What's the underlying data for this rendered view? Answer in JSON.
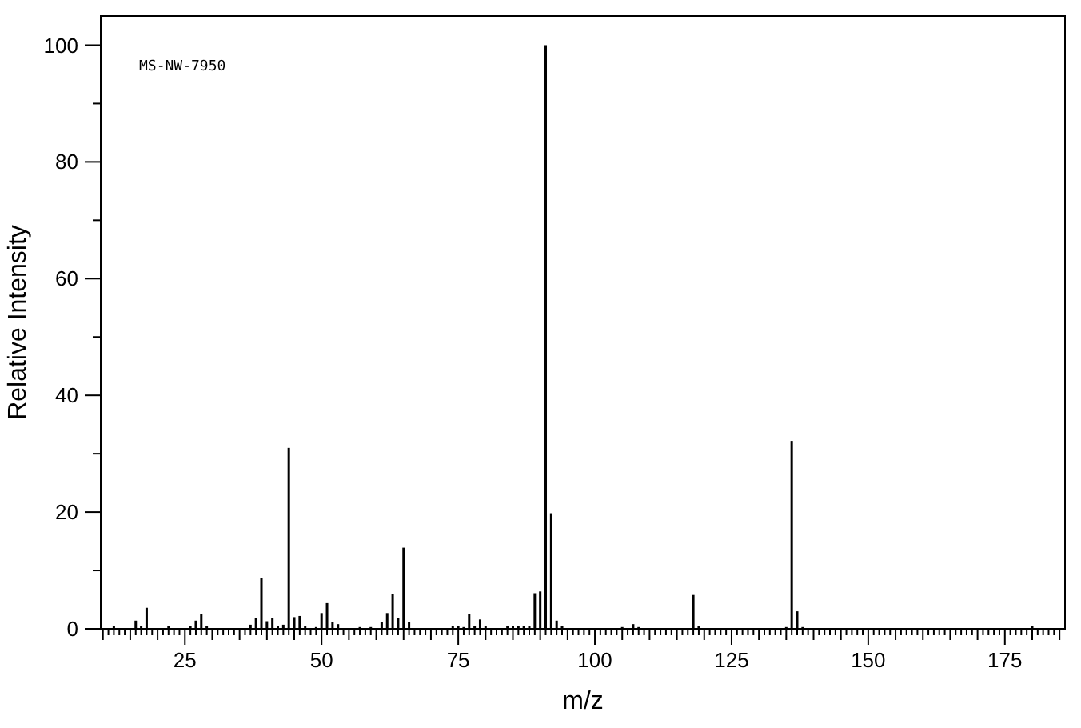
{
  "chart_data": {
    "type": "bar",
    "xlabel": "m/z",
    "ylabel": "Relative Intensity",
    "annotations": [
      "MS-NW-7950"
    ],
    "color": "#000000",
    "x": [
      12,
      16,
      17,
      18,
      22,
      26,
      27,
      28,
      29,
      37,
      38,
      39,
      40,
      41,
      42,
      43,
      44,
      45,
      46,
      47,
      49,
      50,
      51,
      52,
      53,
      57,
      59,
      61,
      62,
      63,
      64,
      65,
      66,
      74,
      75,
      76,
      77,
      78,
      79,
      80,
      84,
      85,
      86,
      87,
      88,
      89,
      90,
      91,
      92,
      93,
      94,
      105,
      107,
      108,
      118,
      119,
      135,
      136,
      137,
      138,
      180
    ],
    "values": [
      0.5,
      1.4,
      0.5,
      3.6,
      0.5,
      0.5,
      1.4,
      2.5,
      0.5,
      0.7,
      1.9,
      8.7,
      1.3,
      1.9,
      0.5,
      0.7,
      31,
      2.0,
      2.2,
      0.5,
      0.3,
      2.7,
      4.4,
      1.1,
      0.8,
      0.3,
      0.3,
      1.1,
      2.7,
      6.0,
      1.9,
      13.9,
      1.1,
      0.5,
      0.5,
      0.3,
      2.5,
      0.5,
      1.6,
      0.5,
      0.5,
      0.5,
      0.5,
      0.5,
      0.5,
      6.1,
      6.4,
      100,
      19.8,
      1.4,
      0.5,
      0.3,
      0.8,
      0.3,
      5.8,
      0.5,
      0.3,
      32.2,
      3.0,
      0.3,
      0.5
    ],
    "xlim": [
      9.6,
      186
    ],
    "ylim": [
      0,
      105
    ],
    "xticks": [
      {
        "value": 10,
        "label": null
      },
      {
        "value": 11,
        "label": null
      },
      {
        "value": 12,
        "label": null
      },
      {
        "value": 13,
        "label": null
      },
      {
        "value": 14,
        "label": null
      },
      {
        "value": 15,
        "label": null
      },
      {
        "value": 16,
        "label": null
      },
      {
        "value": 17,
        "label": null
      },
      {
        "value": 18,
        "label": null
      },
      {
        "value": 19,
        "label": null
      },
      {
        "value": 20,
        "label": null
      },
      {
        "value": 21,
        "label": null
      },
      {
        "value": 22,
        "label": null
      },
      {
        "value": 23,
        "label": null
      },
      {
        "value": 24,
        "label": null
      },
      25,
      {
        "value": 26,
        "label": null
      },
      {
        "value": 27,
        "label": null
      },
      {
        "value": 28,
        "label": null
      },
      {
        "value": 29,
        "label": null
      },
      {
        "value": 30,
        "label": null
      },
      {
        "value": 31,
        "label": null
      },
      {
        "value": 32,
        "label": null
      },
      {
        "value": 33,
        "label": null
      },
      {
        "value": 34,
        "label": null
      },
      {
        "value": 35,
        "label": null
      },
      {
        "value": 36,
        "label": null
      },
      {
        "value": 37,
        "label": null
      },
      {
        "value": 38,
        "label": null
      },
      {
        "value": 39,
        "label": null
      },
      {
        "value": 40,
        "label": null
      },
      {
        "value": 41,
        "label": null
      },
      {
        "value": 42,
        "label": null
      },
      {
        "value": 43,
        "label": null
      },
      {
        "value": 44,
        "label": null
      },
      {
        "value": 45,
        "label": null
      },
      {
        "value": 46,
        "label": null
      },
      {
        "value": 47,
        "label": null
      },
      {
        "value": 48,
        "label": null
      },
      {
        "value": 49,
        "label": null
      },
      50,
      {
        "value": 51,
        "label": null
      },
      {
        "value": 52,
        "label": null
      },
      {
        "value": 53,
        "label": null
      },
      {
        "value": 54,
        "label": null
      },
      {
        "value": 55,
        "label": null
      },
      {
        "value": 56,
        "label": null
      },
      {
        "value": 57,
        "label": null
      },
      {
        "value": 58,
        "label": null
      },
      {
        "value": 59,
        "label": null
      },
      {
        "value": 60,
        "label": null
      },
      {
        "value": 61,
        "label": null
      },
      {
        "value": 62,
        "label": null
      },
      {
        "value": 63,
        "label": null
      },
      {
        "value": 64,
        "label": null
      },
      {
        "value": 65,
        "label": null
      },
      {
        "value": 66,
        "label": null
      },
      {
        "value": 67,
        "label": null
      },
      {
        "value": 68,
        "label": null
      },
      {
        "value": 69,
        "label": null
      },
      {
        "value": 70,
        "label": null
      },
      {
        "value": 71,
        "label": null
      },
      {
        "value": 72,
        "label": null
      },
      {
        "value": 73,
        "label": null
      },
      {
        "value": 74,
        "label": null
      },
      75,
      {
        "value": 76,
        "label": null
      },
      {
        "value": 77,
        "label": null
      },
      {
        "value": 78,
        "label": null
      },
      {
        "value": 79,
        "label": null
      },
      {
        "value": 80,
        "label": null
      },
      {
        "value": 81,
        "label": null
      },
      {
        "value": 82,
        "label": null
      },
      {
        "value": 83,
        "label": null
      },
      {
        "value": 84,
        "label": null
      },
      {
        "value": 85,
        "label": null
      },
      {
        "value": 86,
        "label": null
      },
      {
        "value": 87,
        "label": null
      },
      {
        "value": 88,
        "label": null
      },
      {
        "value": 89,
        "label": null
      },
      {
        "value": 90,
        "label": null
      },
      {
        "value": 91,
        "label": null
      },
      {
        "value": 92,
        "label": null
      },
      {
        "value": 93,
        "label": null
      },
      {
        "value": 94,
        "label": null
      },
      {
        "value": 95,
        "label": null
      },
      {
        "value": 96,
        "label": null
      },
      {
        "value": 97,
        "label": null
      },
      {
        "value": 98,
        "label": null
      },
      {
        "value": 99,
        "label": null
      },
      100,
      {
        "value": 101,
        "label": null
      },
      {
        "value": 102,
        "label": null
      },
      {
        "value": 103,
        "label": null
      },
      {
        "value": 104,
        "label": null
      },
      {
        "value": 105,
        "label": null
      },
      {
        "value": 106,
        "label": null
      },
      {
        "value": 107,
        "label": null
      },
      {
        "value": 108,
        "label": null
      },
      {
        "value": 109,
        "label": null
      },
      {
        "value": 110,
        "label": null
      },
      {
        "value": 111,
        "label": null
      },
      {
        "value": 112,
        "label": null
      },
      {
        "value": 113,
        "label": null
      },
      {
        "value": 114,
        "label": null
      },
      {
        "value": 115,
        "label": null
      },
      {
        "value": 116,
        "label": null
      },
      {
        "value": 117,
        "label": null
      },
      {
        "value": 118,
        "label": null
      },
      {
        "value": 119,
        "label": null
      },
      {
        "value": 120,
        "label": null
      },
      {
        "value": 121,
        "label": null
      },
      {
        "value": 122,
        "label": null
      },
      {
        "value": 123,
        "label": null
      },
      {
        "value": 124,
        "label": null
      },
      125,
      {
        "value": 126,
        "label": null
      },
      {
        "value": 127,
        "label": null
      },
      {
        "value": 128,
        "label": null
      },
      {
        "value": 129,
        "label": null
      },
      {
        "value": 130,
        "label": null
      },
      {
        "value": 131,
        "label": null
      },
      {
        "value": 132,
        "label": null
      },
      {
        "value": 133,
        "label": null
      },
      {
        "value": 134,
        "label": null
      },
      {
        "value": 135,
        "label": null
      },
      {
        "value": 136,
        "label": null
      },
      {
        "value": 137,
        "label": null
      },
      {
        "value": 138,
        "label": null
      },
      {
        "value": 139,
        "label": null
      },
      {
        "value": 140,
        "label": null
      },
      {
        "value": 141,
        "label": null
      },
      {
        "value": 142,
        "label": null
      },
      {
        "value": 143,
        "label": null
      },
      {
        "value": 144,
        "label": null
      },
      {
        "value": 145,
        "label": null
      },
      {
        "value": 146,
        "label": null
      },
      {
        "value": 147,
        "label": null
      },
      {
        "value": 148,
        "label": null
      },
      {
        "value": 149,
        "label": null
      },
      150,
      {
        "value": 151,
        "label": null
      },
      {
        "value": 152,
        "label": null
      },
      {
        "value": 153,
        "label": null
      },
      {
        "value": 154,
        "label": null
      },
      {
        "value": 155,
        "label": null
      },
      {
        "value": 156,
        "label": null
      },
      {
        "value": 157,
        "label": null
      },
      {
        "value": 158,
        "label": null
      },
      {
        "value": 159,
        "label": null
      },
      {
        "value": 160,
        "label": null
      },
      {
        "value": 161,
        "label": null
      },
      {
        "value": 162,
        "label": null
      },
      {
        "value": 163,
        "label": null
      },
      {
        "value": 164,
        "label": null
      },
      {
        "value": 165,
        "label": null
      },
      {
        "value": 166,
        "label": null
      },
      {
        "value": 167,
        "label": null
      },
      {
        "value": 168,
        "label": null
      },
      {
        "value": 169,
        "label": null
      },
      {
        "value": 170,
        "label": null
      },
      {
        "value": 171,
        "label": null
      },
      {
        "value": 172,
        "label": null
      },
      {
        "value": 173,
        "label": null
      },
      {
        "value": 174,
        "label": null
      },
      175,
      {
        "value": 176,
        "label": null
      },
      {
        "value": 177,
        "label": null
      },
      {
        "value": 178,
        "label": null
      },
      {
        "value": 179,
        "label": null
      },
      {
        "value": 180,
        "label": null
      },
      {
        "value": 181,
        "label": null
      },
      {
        "value": 182,
        "label": null
      },
      {
        "value": 183,
        "label": null
      },
      {
        "value": 184,
        "label": null
      },
      {
        "value": 185,
        "label": null
      }
    ],
    "yticks": [
      0,
      {
        "value": 10,
        "label": null
      },
      20,
      {
        "value": 30,
        "label": null
      },
      40,
      {
        "value": 50,
        "label": null
      },
      60,
      {
        "value": 70,
        "label": null
      },
      80,
      {
        "value": 90,
        "label": null
      },
      100
    ]
  }
}
